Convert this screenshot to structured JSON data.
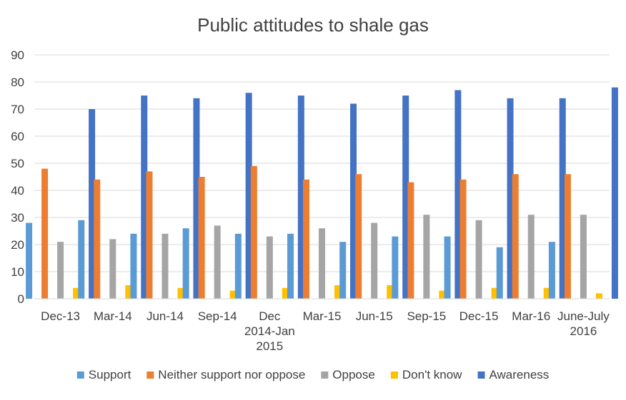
{
  "chart_data": {
    "type": "bar",
    "title": "Public attitudes to shale gas",
    "xlabel": "",
    "ylabel": "",
    "ylim": [
      0,
      90
    ],
    "yticks": [
      0,
      10,
      20,
      30,
      40,
      50,
      60,
      70,
      80,
      90
    ],
    "grid": true,
    "legend_position": "bottom",
    "categories": [
      [
        "Dec-13"
      ],
      [
        "Mar-14"
      ],
      [
        "Jun-14"
      ],
      [
        "Sep-14"
      ],
      [
        "Dec",
        "2014-Jan",
        "2015"
      ],
      [
        "Mar-15"
      ],
      [
        "Jun-15"
      ],
      [
        "Sep-15"
      ],
      [
        "Dec-15"
      ],
      [
        "Mar-16"
      ],
      [
        "June-July",
        "2016"
      ]
    ],
    "series": [
      {
        "name": "Support",
        "color": "#5b9bd5",
        "values": [
          28,
          29,
          24,
          26,
          24,
          24,
          21,
          23,
          23,
          19,
          21
        ]
      },
      {
        "name": "Neither support nor oppose",
        "color": "#ed7d31",
        "values": [
          48,
          44,
          47,
          45,
          49,
          44,
          46,
          43,
          44,
          46,
          46
        ]
      },
      {
        "name": "Oppose",
        "color": "#a5a5a5",
        "values": [
          21,
          22,
          24,
          27,
          23,
          26,
          28,
          31,
          29,
          31,
          31
        ]
      },
      {
        "name": "Don't know",
        "color": "#ffc000",
        "values": [
          4,
          5,
          4,
          3,
          4,
          5,
          5,
          3,
          4,
          4,
          2
        ]
      },
      {
        "name": "Awareness",
        "color": "#4472c4",
        "values": [
          70,
          75,
          74,
          76,
          75,
          72,
          75,
          77,
          74,
          74,
          78
        ]
      }
    ]
  }
}
